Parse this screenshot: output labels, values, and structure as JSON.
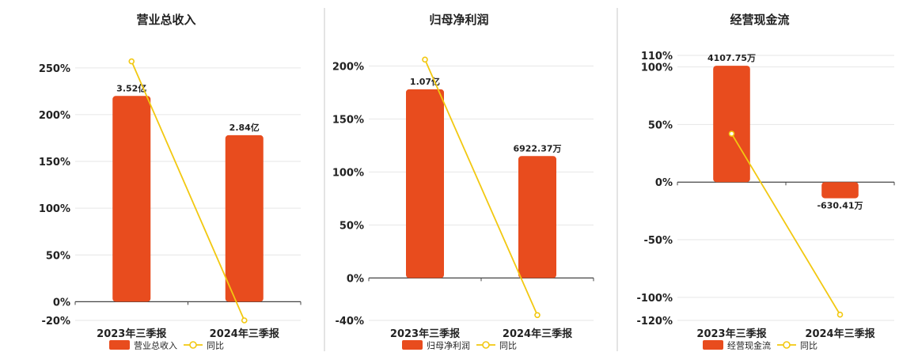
{
  "colors": {
    "bar": "#E84C1E",
    "line": "#F2C811",
    "grid": "#e6e6e6",
    "axis": "#444444",
    "divider": "#c8c8c8"
  },
  "chart_data": [
    {
      "type": "bar",
      "title": "营业总收入",
      "categories": [
        "2023年三季报",
        "2024年三季报"
      ],
      "series": [
        {
          "name": "营业总收入",
          "type": "bar",
          "values": [
            220,
            178
          ],
          "labels": [
            "3.52亿",
            "2.84亿"
          ]
        },
        {
          "name": "同比",
          "type": "line",
          "values": [
            257,
            -20
          ]
        }
      ],
      "ylim": [
        -20,
        260
      ],
      "yticks": [
        250,
        200,
        150,
        100,
        50,
        0,
        -20
      ],
      "ytick_labels": [
        "250%",
        "200%",
        "150%",
        "100%",
        "50%",
        "0%",
        "-20%"
      ],
      "grid": true,
      "legend": "bottom"
    },
    {
      "type": "bar",
      "title": "归母净利润",
      "categories": [
        "2023年三季报",
        "2024年三季报"
      ],
      "series": [
        {
          "name": "归母净利润",
          "type": "bar",
          "values": [
            178,
            115
          ],
          "labels": [
            "1.07亿",
            "6922.37万"
          ]
        },
        {
          "name": "同比",
          "type": "line",
          "values": [
            206,
            -35
          ]
        }
      ],
      "ylim": [
        -40,
        210
      ],
      "yticks": [
        200,
        150,
        100,
        50,
        0,
        -40
      ],
      "ytick_labels": [
        "200%",
        "150%",
        "100%",
        "50%",
        "0%",
        "-40%"
      ],
      "grid": true,
      "legend": "bottom"
    },
    {
      "type": "bar",
      "title": "经营现金流",
      "categories": [
        "2023年三季报",
        "2024年三季报"
      ],
      "series": [
        {
          "name": "经营现金流",
          "type": "bar",
          "values": [
            101,
            -14
          ],
          "labels": [
            "4107.75万",
            "-630.41万"
          ]
        },
        {
          "name": "同比",
          "type": "line",
          "values": [
            42,
            -115
          ]
        }
      ],
      "ylim": [
        -120,
        110
      ],
      "yticks": [
        110,
        100,
        50,
        0,
        -50,
        -100,
        -120
      ],
      "ytick_labels": [
        "110%",
        "100%",
        "50%",
        "0%",
        "-50%",
        "-100%",
        "-120%"
      ],
      "grid": true,
      "legend": "bottom"
    }
  ]
}
